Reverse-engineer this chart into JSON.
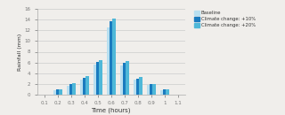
{
  "x_labels": [
    "0.1",
    "0.2",
    "0.3",
    "0.4",
    "0.5",
    "0.6",
    "0.7",
    "0.8",
    "0.9",
    "1",
    "1.1"
  ],
  "baseline": [
    0,
    0.8,
    1.6,
    2.8,
    5.6,
    12.6,
    5.5,
    2.8,
    1.7,
    0.8,
    0
  ],
  "climate_10": [
    0,
    0.9,
    1.9,
    3.1,
    6.1,
    13.8,
    5.9,
    3.0,
    1.9,
    0.9,
    0
  ],
  "climate_20": [
    0,
    1.0,
    2.1,
    3.5,
    6.5,
    14.3,
    6.3,
    3.3,
    2.0,
    1.0,
    0
  ],
  "color_baseline": "#b8dff0",
  "color_10": "#1a7bbf",
  "color_20": "#4fb8d8",
  "xlabel": "Time (hours)",
  "ylabel": "Rainfall (mm)",
  "ylim": [
    0,
    16
  ],
  "yticks": [
    0,
    2,
    4,
    6,
    8,
    10,
    12,
    14,
    16
  ],
  "legend_labels": [
    "Baseline",
    "Climate change: +10%",
    "Climate change: +20%"
  ],
  "bar_width": 0.022,
  "background": "#f0eeeb"
}
